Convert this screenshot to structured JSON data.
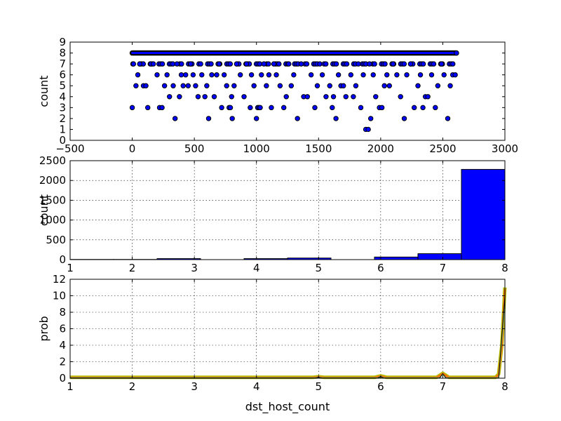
{
  "chart_data": [
    {
      "type": "scatter",
      "xlabel": "",
      "ylabel": "count",
      "xlim": [
        -500,
        3000
      ],
      "ylim": [
        0,
        9
      ],
      "xticks": [
        -500,
        0,
        500,
        1000,
        1500,
        2000,
        2500,
        3000
      ],
      "yticks": [
        0,
        1,
        2,
        3,
        4,
        5,
        6,
        7,
        8,
        9
      ],
      "grid": false,
      "marker_color": "#0000ff",
      "x_extent": [
        0,
        2610
      ],
      "baseline_value": 8,
      "points": [
        [
          0,
          3
        ],
        [
          10,
          7
        ],
        [
          30,
          5
        ],
        [
          45,
          6
        ],
        [
          60,
          7
        ],
        [
          90,
          5
        ],
        [
          110,
          5
        ],
        [
          125,
          3
        ],
        [
          150,
          7
        ],
        [
          170,
          7
        ],
        [
          200,
          6
        ],
        [
          220,
          3
        ],
        [
          240,
          3
        ],
        [
          260,
          5
        ],
        [
          280,
          6
        ],
        [
          300,
          4
        ],
        [
          330,
          5
        ],
        [
          345,
          2
        ],
        [
          360,
          7
        ],
        [
          380,
          4
        ],
        [
          395,
          6
        ],
        [
          410,
          5
        ],
        [
          430,
          6
        ],
        [
          450,
          5
        ],
        [
          470,
          7
        ],
        [
          490,
          6
        ],
        [
          510,
          5
        ],
        [
          530,
          4
        ],
        [
          560,
          6
        ],
        [
          585,
          4
        ],
        [
          600,
          5
        ],
        [
          615,
          2
        ],
        [
          640,
          6
        ],
        [
          660,
          4
        ],
        [
          680,
          6
        ],
        [
          700,
          7
        ],
        [
          720,
          3
        ],
        [
          740,
          6
        ],
        [
          760,
          5
        ],
        [
          780,
          3
        ],
        [
          790,
          3
        ],
        [
          800,
          4
        ],
        [
          805,
          2
        ],
        [
          820,
          5
        ],
        [
          840,
          7
        ],
        [
          870,
          6
        ],
        [
          900,
          4
        ],
        [
          920,
          7
        ],
        [
          950,
          3
        ],
        [
          960,
          6
        ],
        [
          980,
          5
        ],
        [
          1000,
          2
        ],
        [
          1010,
          3
        ],
        [
          1020,
          3
        ],
        [
          1030,
          3
        ],
        [
          1040,
          6
        ],
        [
          1060,
          7
        ],
        [
          1080,
          5
        ],
        [
          1100,
          6
        ],
        [
          1120,
          3
        ],
        [
          1140,
          7
        ],
        [
          1160,
          6
        ],
        [
          1190,
          5
        ],
        [
          1220,
          3
        ],
        [
          1240,
          4
        ],
        [
          1260,
          7
        ],
        [
          1280,
          5
        ],
        [
          1300,
          6
        ],
        [
          1330,
          2
        ],
        [
          1360,
          7
        ],
        [
          1380,
          4
        ],
        [
          1410,
          4
        ],
        [
          1440,
          6
        ],
        [
          1470,
          3
        ],
        [
          1490,
          5
        ],
        [
          1510,
          7
        ],
        [
          1530,
          6
        ],
        [
          1560,
          4
        ],
        [
          1590,
          5
        ],
        [
          1610,
          3
        ],
        [
          1620,
          4
        ],
        [
          1640,
          2
        ],
        [
          1660,
          6
        ],
        [
          1680,
          5
        ],
        [
          1700,
          5
        ],
        [
          1720,
          4
        ],
        [
          1760,
          6
        ],
        [
          1780,
          4
        ],
        [
          1800,
          5
        ],
        [
          1820,
          7
        ],
        [
          1840,
          3
        ],
        [
          1860,
          6
        ],
        [
          1880,
          1
        ],
        [
          1900,
          1
        ],
        [
          1910,
          7
        ],
        [
          1920,
          2
        ],
        [
          1940,
          6
        ],
        [
          1960,
          4
        ],
        [
          1990,
          3
        ],
        [
          2010,
          3
        ],
        [
          2030,
          5
        ],
        [
          2050,
          6
        ],
        [
          2070,
          5
        ],
        [
          2100,
          7
        ],
        [
          2130,
          6
        ],
        [
          2160,
          4
        ],
        [
          2190,
          2
        ],
        [
          2210,
          6
        ],
        [
          2240,
          7
        ],
        [
          2270,
          3
        ],
        [
          2300,
          5
        ],
        [
          2320,
          6
        ],
        [
          2340,
          3
        ],
        [
          2360,
          4
        ],
        [
          2380,
          4
        ],
        [
          2410,
          6
        ],
        [
          2440,
          3
        ],
        [
          2460,
          5
        ],
        [
          2490,
          7
        ],
        [
          2510,
          6
        ],
        [
          2540,
          2
        ],
        [
          2560,
          5
        ],
        [
          2580,
          6
        ],
        [
          2600,
          6
        ],
        [
          2610,
          8
        ]
      ]
    },
    {
      "type": "bar",
      "xlabel": "",
      "ylabel": "count",
      "xlim": [
        1,
        8
      ],
      "ylim": [
        0,
        2500
      ],
      "xticks": [
        1,
        2,
        3,
        4,
        5,
        6,
        7,
        8
      ],
      "yticks": [
        0,
        500,
        1000,
        1500,
        2000,
        2500
      ],
      "grid": true,
      "bar_color": "#0000ff",
      "bins": [
        {
          "x0": 1.0,
          "x1": 1.7,
          "value": 5
        },
        {
          "x0": 1.7,
          "x1": 2.4,
          "value": 5
        },
        {
          "x0": 2.4,
          "x1": 3.1,
          "value": 25
        },
        {
          "x0": 3.1,
          "x1": 3.8,
          "value": 0
        },
        {
          "x0": 3.8,
          "x1": 4.5,
          "value": 25
        },
        {
          "x0": 4.5,
          "x1": 5.2,
          "value": 40
        },
        {
          "x0": 5.2,
          "x1": 5.9,
          "value": 0
        },
        {
          "x0": 5.9,
          "x1": 6.6,
          "value": 65
        },
        {
          "x0": 6.6,
          "x1": 7.3,
          "value": 150
        },
        {
          "x0": 7.3,
          "x1": 8.0,
          "value": 2280
        }
      ]
    },
    {
      "type": "line",
      "xlabel": "dst_host_count",
      "ylabel": "prob",
      "xlim": [
        1,
        8
      ],
      "ylim": [
        0,
        12
      ],
      "xticks": [
        1,
        2,
        3,
        4,
        5,
        6,
        7,
        8
      ],
      "yticks": [
        0,
        2,
        4,
        6,
        8,
        10,
        12
      ],
      "grid": true,
      "series": [
        {
          "color": "#b5bd00",
          "width": 5,
          "x": [
            1,
            2,
            3,
            4,
            4.9,
            5,
            5.1,
            5.9,
            6,
            6.1,
            6.9,
            7,
            7.1,
            7.85,
            7.9,
            7.95,
            8
          ],
          "y": [
            0.1,
            0.1,
            0.1,
            0.1,
            0.1,
            0.18,
            0.1,
            0.1,
            0.28,
            0.1,
            0.1,
            0.6,
            0.1,
            0.1,
            0.5,
            4,
            11
          ]
        },
        {
          "color": "#ff6a00",
          "width": 2.5,
          "x": [
            1,
            2,
            3,
            4,
            4.9,
            5,
            5.1,
            5.9,
            6,
            6.1,
            6.9,
            7,
            7.1,
            7.85,
            7.9,
            7.95,
            8
          ],
          "y": [
            0.08,
            0.08,
            0.08,
            0.08,
            0.08,
            0.14,
            0.08,
            0.08,
            0.24,
            0.08,
            0.08,
            0.55,
            0.08,
            0.08,
            0.45,
            3.8,
            10.8
          ]
        },
        {
          "color": "#7fbf7f",
          "width": 1.5,
          "x": [
            1,
            2,
            3,
            4,
            4.95,
            5,
            5.05,
            5.95,
            6,
            6.05,
            6.95,
            7,
            7.05,
            7.9,
            8
          ],
          "y": [
            0.05,
            0.05,
            0.05,
            0.05,
            0.05,
            0.12,
            0.05,
            0.05,
            0.22,
            0.05,
            0.05,
            0.5,
            0.05,
            0.05,
            9
          ]
        },
        {
          "color": "#000000",
          "width": 1,
          "x": [
            1,
            2,
            3,
            4,
            4.95,
            5,
            5.05,
            5.95,
            6,
            6.05,
            6.95,
            7,
            7.05,
            7.9,
            8
          ],
          "y": [
            0.02,
            0.02,
            0.02,
            0.02,
            0.02,
            0.1,
            0.02,
            0.02,
            0.2,
            0.02,
            0.02,
            0.55,
            0.02,
            0.02,
            10
          ]
        }
      ]
    }
  ]
}
